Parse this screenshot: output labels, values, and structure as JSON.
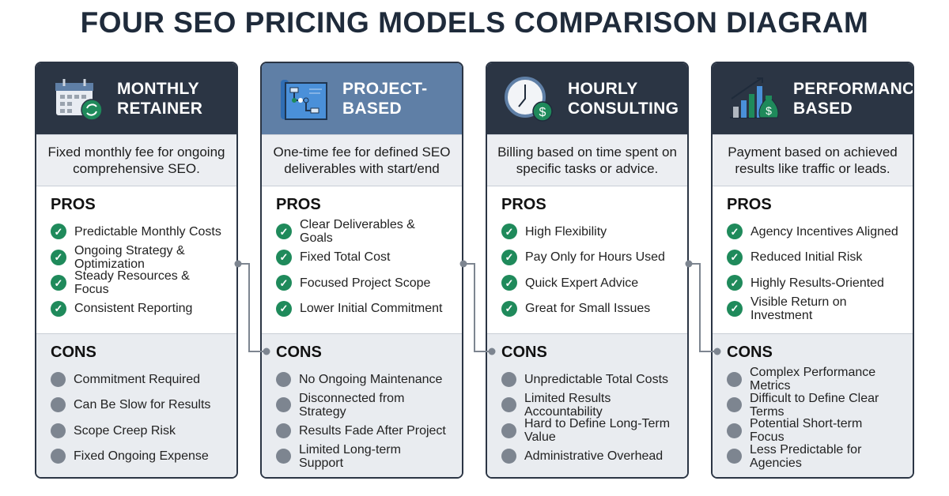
{
  "title": "FOUR SEO PRICING MODELS COMPARISON DIAGRAM",
  "pros_label": "PROS",
  "cons_label": "CONS",
  "colors": {
    "header_dark": "#2b3544",
    "header_highlight": "#5f7fa6",
    "check_green": "#1f8a5b",
    "con_gray": "#7d8590"
  },
  "cards": [
    {
      "name": "MONTHLY RETAINER",
      "icon": "calendar-refresh-icon",
      "description": "Fixed monthly fee for ongoing comprehensive SEO.",
      "pros": [
        "Predictable Monthly Costs",
        "Ongoing Strategy & Optimization",
        "Steady Resources & Focus",
        "Consistent Reporting"
      ],
      "cons": [
        "Commitment Required",
        "Can Be Slow for Results",
        "Scope Creep Risk",
        "Fixed Ongoing Expense"
      ]
    },
    {
      "name": "PROJECT-BASED",
      "icon": "blueprint-icon",
      "description": "One-time fee for defined SEO deliverables with start/end",
      "pros": [
        "Clear Deliverables & Goals",
        "Fixed Total Cost",
        "Focused Project Scope",
        "Lower Initial Commitment"
      ],
      "cons": [
        "No Ongoing Maintenance",
        "Disconnected from Strategy",
        "Results Fade After Project",
        "Limited Long-term Support"
      ]
    },
    {
      "name": "HOURLY CONSULTING",
      "icon": "clock-dollar-icon",
      "description": "Billing based on time spent on specific tasks or advice.",
      "pros": [
        "High Flexibility",
        "Pay Only for Hours Used",
        "Quick Expert Advice",
        "Great for Small Issues"
      ],
      "cons": [
        "Unpredictable Total Costs",
        "Limited Results Accountability",
        "Hard to Define Long-Term Value",
        "Administrative Overhead"
      ]
    },
    {
      "name": "PERFORMANCE-BASED",
      "icon": "growth-chart-money-bag-icon",
      "description": "Payment based on achieved results like traffic or leads.",
      "pros": [
        "Agency Incentives Aligned",
        "Reduced Initial Risk",
        "Highly Results-Oriented",
        "Visible Return on Investment"
      ],
      "cons": [
        "Complex Performance Metrics",
        "Difficult to Define Clear Terms",
        "Potential Short-term Focus",
        "Less Predictable for Agencies"
      ]
    }
  ]
}
